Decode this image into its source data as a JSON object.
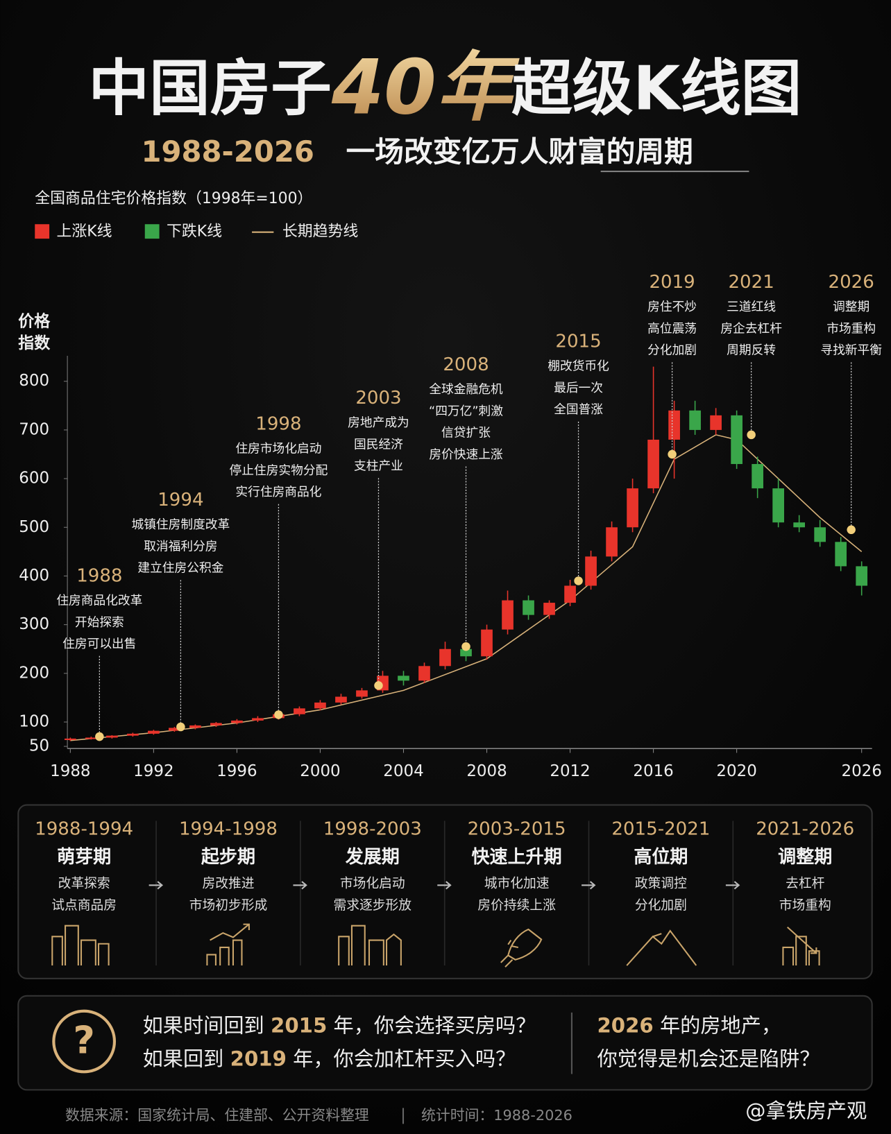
{
  "header": {
    "title_parts": [
      "中国房子",
      "40年",
      "超级K线图"
    ],
    "subtitle_years": "1988-2026",
    "subtitle": "一场改变亿万人财富的周期",
    "index_label": "全国商品住宅价格指数（1998年=100）"
  },
  "chart_data": {
    "type": "candlestick",
    "y_axis_title": [
      "价格",
      "指数"
    ],
    "up": {
      "name": "上涨K线",
      "color": "#e8342b"
    },
    "down": {
      "name": "下跌K线",
      "color": "#3aa64a"
    },
    "trend": {
      "name": "长期趋势线",
      "color": "#d8b27a",
      "x": [
        1988,
        1992,
        1996,
        2000,
        2004,
        2008,
        2012,
        2015,
        2017,
        2019,
        2020,
        2022,
        2024,
        2026
      ],
      "values": [
        62,
        78,
        98,
        125,
        165,
        230,
        350,
        460,
        640,
        690,
        680,
        600,
        520,
        450
      ]
    },
    "candles": {
      "x": [
        1988,
        1989,
        1990,
        1991,
        1992,
        1993,
        1994,
        1995,
        1996,
        1997,
        1998,
        1999,
        2000,
        2001,
        2002,
        2003,
        2004,
        2005,
        2006,
        2007,
        2008,
        2009,
        2010,
        2011,
        2012,
        2013,
        2014,
        2015,
        2016,
        2017,
        2018,
        2019,
        2020,
        2021,
        2022,
        2023,
        2024,
        2025,
        2026
      ],
      "open": [
        63,
        66,
        68,
        72,
        76,
        82,
        88,
        93,
        98,
        103,
        108,
        116,
        128,
        140,
        152,
        165,
        195,
        185,
        215,
        250,
        235,
        290,
        350,
        320,
        345,
        380,
        440,
        500,
        580,
        680,
        740,
        700,
        730,
        630,
        580,
        510,
        500,
        470,
        420
      ],
      "high": [
        68,
        70,
        73,
        78,
        84,
        90,
        95,
        100,
        106,
        112,
        120,
        132,
        145,
        158,
        170,
        205,
        205,
        222,
        265,
        262,
        300,
        370,
        360,
        350,
        392,
        452,
        512,
        600,
        830,
        760,
        760,
        745,
        740,
        645,
        600,
        525,
        515,
        480,
        430
      ],
      "low": [
        61,
        64,
        66,
        70,
        74,
        80,
        85,
        90,
        95,
        100,
        105,
        112,
        124,
        136,
        148,
        160,
        175,
        180,
        208,
        225,
        228,
        280,
        310,
        312,
        338,
        372,
        430,
        490,
        570,
        600,
        690,
        690,
        620,
        560,
        500,
        490,
        460,
        410,
        360
      ],
      "close": [
        66,
        68,
        72,
        76,
        82,
        88,
        93,
        98,
        103,
        108,
        116,
        128,
        140,
        152,
        165,
        195,
        185,
        215,
        250,
        235,
        290,
        350,
        320,
        345,
        380,
        440,
        500,
        580,
        680,
        740,
        700,
        730,
        630,
        580,
        510,
        500,
        470,
        420,
        380
      ]
    },
    "xlim": [
      1988,
      2026.5
    ],
    "xticks": [
      1988,
      1992,
      1996,
      2000,
      2004,
      2008,
      2012,
      2016,
      2020,
      2026
    ],
    "ylim": [
      50,
      830
    ],
    "yticks": [
      50,
      100,
      200,
      300,
      400,
      500,
      600,
      700,
      800
    ],
    "grid": false,
    "annotations": [
      {
        "year": "1988",
        "lines": [
          "住房商品化改革",
          "开始探索",
          "住房可以出售"
        ],
        "x": 1989.4,
        "y": 70
      },
      {
        "year": "1994",
        "lines": [
          "城镇住房制度改革",
          "取消福利分房",
          "建立住房公积金"
        ],
        "x": 1993.3,
        "y": 90
      },
      {
        "year": "1998",
        "lines": [
          "住房市场化启动",
          "停止住房实物分配",
          "实行住房商品化"
        ],
        "x": 1998.0,
        "y": 115
      },
      {
        "year": "2003",
        "lines": [
          "房地产成为",
          "国民经济",
          "支柱产业"
        ],
        "x": 2002.8,
        "y": 175
      },
      {
        "year": "2008",
        "lines": [
          "全球金融危机",
          "“四万亿”刺激",
          "信贷扩张",
          "房价快速上涨"
        ],
        "x": 2007.0,
        "y": 255
      },
      {
        "year": "2015",
        "lines": [
          "棚改货币化",
          "最后一次",
          "全国普涨"
        ],
        "x": 2012.4,
        "y": 390
      },
      {
        "year": "2019",
        "lines": [
          "房住不炒",
          "高位震荡",
          "分化加剧"
        ],
        "x": 2016.9,
        "y": 650
      },
      {
        "year": "2021",
        "lines": [
          "三道红线",
          "房企去杠杆",
          "周期反转"
        ],
        "x": 2020.7,
        "y": 690
      },
      {
        "year": "2026",
        "lines": [
          "调整期",
          "市场重构",
          "寻找新平衡"
        ],
        "x": 2025.5,
        "y": 495
      }
    ]
  },
  "phases": [
    {
      "years": "1988-1994",
      "name": "萌芽期",
      "lines": [
        "改革探索",
        "试点商品房"
      ]
    },
    {
      "years": "1994-1998",
      "name": "起步期",
      "lines": [
        "房改推进",
        "市场初步形成"
      ]
    },
    {
      "years": "1998-2003",
      "name": "发展期",
      "lines": [
        "市场化启动",
        "需求逐步形放"
      ]
    },
    {
      "years": "2003-2015",
      "name": "快速上升期",
      "lines": [
        "城市化加速",
        "房价持续上涨"
      ]
    },
    {
      "years": "2015-2021",
      "name": "高位期",
      "lines": [
        "政策调控",
        "分化加剧"
      ]
    },
    {
      "years": "2021-2026",
      "name": "调整期",
      "lines": [
        "去杠杆",
        "市场重构"
      ]
    }
  ],
  "questions": {
    "icon": "?",
    "left": [
      [
        "如果时间回到 ",
        "2015",
        " 年，你会选择买房吗？"
      ],
      [
        "如果回到 ",
        "2019",
        " 年，你会加杠杆买入吗？"
      ]
    ],
    "right": [
      [
        "2026",
        " 年的房地产，"
      ],
      [
        "你觉得是机会还是陷阱？"
      ]
    ]
  },
  "footer": {
    "source": "数据来源：国家统计局、住建部、公开资料整理",
    "period": "统计时间：1988-2026",
    "watermark": "@拿铁房产观"
  }
}
